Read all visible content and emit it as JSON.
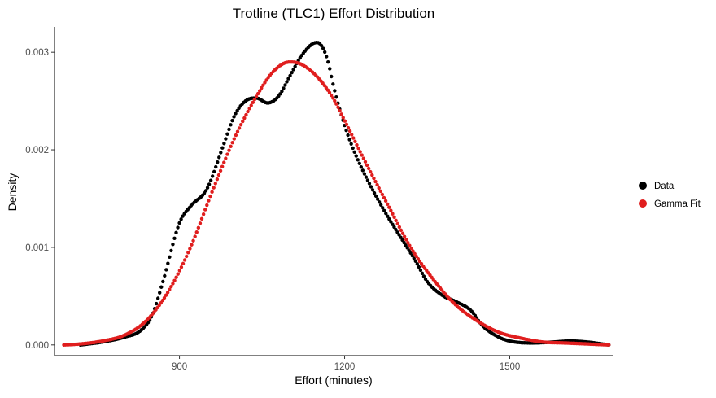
{
  "chart_data": {
    "type": "scatter",
    "title": "Trotline (TLC1) Effort Distribution",
    "xlabel": "Effort (minutes)",
    "ylabel": "Density",
    "xlim": [
      673,
      1687
    ],
    "ylim": [
      -0.00011,
      0.00326
    ],
    "xticks": [
      900,
      1200,
      1500
    ],
    "xtick_labels": [
      "900",
      "1200",
      "1500"
    ],
    "yticks": [
      0,
      0.001,
      0.002,
      0.003
    ],
    "ytick_labels": [
      "0.000",
      "0.001",
      "0.002",
      "0.003"
    ],
    "grid": false,
    "legend_position": "right",
    "series": [
      {
        "name": "Data",
        "color": "#000000",
        "x": [
          720,
          760,
          800,
          830,
          850,
          870,
          900,
          920,
          950,
          980,
          1000,
          1020,
          1040,
          1060,
          1080,
          1100,
          1120,
          1140,
          1150,
          1160,
          1170,
          1180,
          1200,
          1220,
          1250,
          1280,
          1300,
          1330,
          1350,
          1380,
          1400,
          1430,
          1450,
          1480,
          1500,
          1540,
          1580,
          1610,
          1640,
          1680
        ],
        "y": [
          0.0,
          3e-05,
          8e-05,
          0.00015,
          0.0003,
          0.00065,
          0.00125,
          0.00142,
          0.0016,
          0.00205,
          0.00235,
          0.0025,
          0.00253,
          0.00248,
          0.00255,
          0.00275,
          0.00295,
          0.00308,
          0.0031,
          0.00305,
          0.0029,
          0.00265,
          0.00225,
          0.00195,
          0.0016,
          0.0013,
          0.00112,
          0.00085,
          0.00065,
          0.0005,
          0.00045,
          0.00035,
          0.0002,
          8e-05,
          4e-05,
          2e-05,
          3e-05,
          4e-05,
          3e-05,
          0.0
        ]
      },
      {
        "name": "Gamma Fit",
        "color": "#e01e1e",
        "x": [
          690,
          720,
          760,
          800,
          840,
          880,
          920,
          960,
          1000,
          1040,
          1070,
          1100,
          1120,
          1150,
          1180,
          1200,
          1240,
          1280,
          1320,
          1360,
          1400,
          1440,
          1480,
          1520,
          1560,
          1600,
          1640,
          1680
        ],
        "y": [
          0.0,
          1e-05,
          4e-05,
          0.0001,
          0.00025,
          0.00055,
          0.001,
          0.00158,
          0.00212,
          0.00255,
          0.0028,
          0.0029,
          0.00288,
          0.00275,
          0.00252,
          0.0023,
          0.00185,
          0.00142,
          0.001,
          0.00068,
          0.00042,
          0.00025,
          0.00013,
          7e-05,
          3e-05,
          2e-05,
          1e-05,
          0.0
        ]
      }
    ]
  }
}
